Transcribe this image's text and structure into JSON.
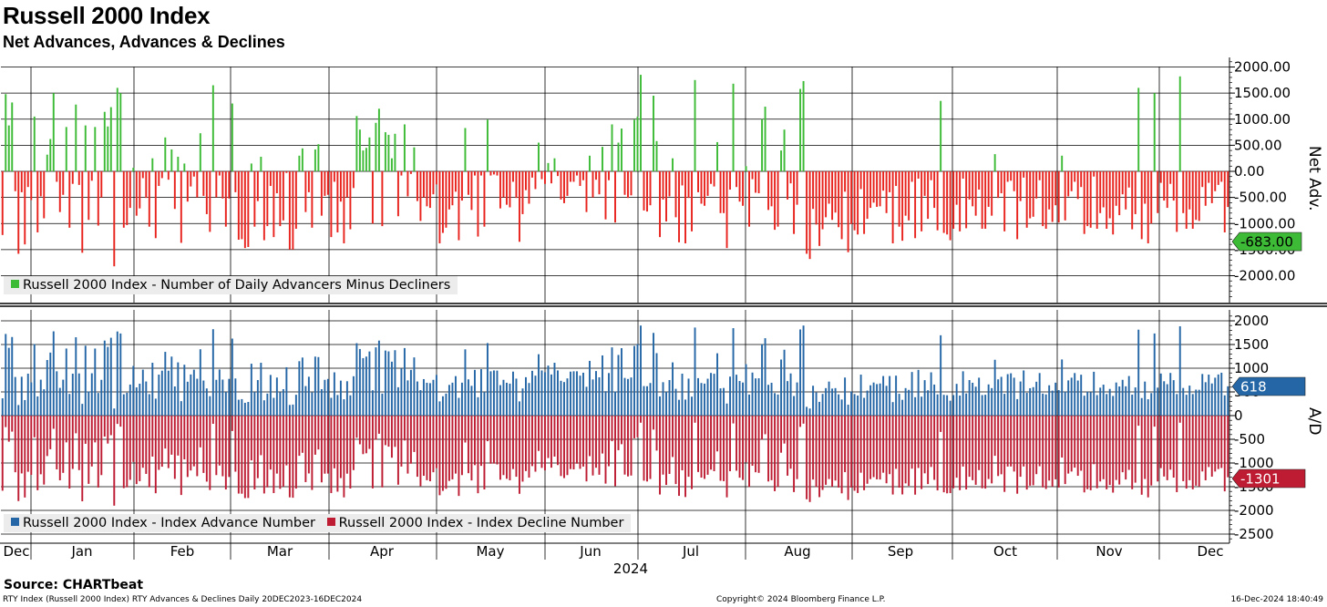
{
  "header": {
    "title": "Russell 2000 Index",
    "subtitle": "Net Advances, Advances & Declines"
  },
  "footer": {
    "source": "Source: CHARTbeat",
    "left": "RTY Index (Russell 2000 Index) RTY Advances & Declines  Daily 20DEC2023-16DEC2024",
    "center": "Copyright© 2024 Bloomberg Finance L.P.",
    "right": "16-Dec-2024 18:40:49"
  },
  "colors": {
    "net_up": "#3dbb36",
    "net_down": "#e8231e",
    "advance": "#2567a6",
    "decline": "#bd1c32",
    "grid": "#000000"
  },
  "chart_data": [
    {
      "type": "bar",
      "ylabel": "Net Adv.",
      "ylim": [
        -2500,
        2000
      ],
      "yticks": [
        "2000.00",
        "1500.00",
        "1000.00",
        "500.00",
        "0.00",
        "-500.00",
        "-1000.00",
        "-1500.00",
        "-2000.00"
      ],
      "last_value_label": "-683.00",
      "legend": {
        "position": "bottom-left"
      },
      "series": [
        {
          "name": "Russell 2000 Index - Number of Daily Advancers Minus Decliners",
          "values": [
            -1220,
            1480,
            880,
            1320,
            -380,
            -1580,
            -400,
            -1400,
            -300,
            -550,
            1050,
            -1170,
            -480,
            -900,
            320,
            620,
            1500,
            -200,
            -780,
            -450,
            850,
            -1080,
            -240,
            1280,
            -260,
            -1560,
            880,
            -930,
            -180,
            850,
            -1040,
            -500,
            1140,
            860,
            1230,
            -1820,
            1600,
            1500,
            -1080,
            -1030,
            -700,
            70,
            -850,
            -710,
            -130,
            -510,
            -1060,
            250,
            -1280,
            -280,
            -130,
            650,
            -160,
            420,
            -720,
            280,
            -1370,
            150,
            -580,
            -290,
            -100,
            -500,
            730,
            -470,
            -820,
            -1160,
            1650,
            -500,
            -80,
            -520,
            -1060,
            -520,
            1300,
            -400,
            -1310,
            -1300,
            -1470,
            -1450,
            150,
            -1060,
            -570,
            280,
            -1320,
            -1050,
            -280,
            -1260,
            -420,
            -1050,
            -940,
            -30,
            -1500,
            -1500,
            -1100,
            300,
            440,
            -780,
            -400,
            -1080,
            420,
            520,
            -850,
            -470,
            -450,
            -1260,
            -200,
            -1170,
            -580,
            -1380,
            -500,
            -1110,
            -320,
            1060,
            800,
            400,
            450,
            650,
            -1000,
            930,
            1200,
            -1050,
            750,
            700,
            250,
            720,
            -860,
            -80,
            900,
            -480,
            -50,
            460,
            -570,
            -950,
            -500,
            -670,
            -700,
            -440,
            -250,
            -1380,
            -1180,
            -1080,
            -730,
            -650,
            -390,
            -1320,
            -560,
            830,
            -450,
            -740,
            -80,
            -1250,
            -80,
            -1060,
            990,
            -80,
            -60,
            -80,
            -710,
            -500,
            -640,
            -690,
            -200,
            -510,
            -1350,
            -820,
            -360,
            -620,
            -120,
            -340,
            550,
            -150,
            -240,
            160,
            -230,
            250,
            -90,
            -540,
            -610,
            -470,
            -200,
            -200,
            -80,
            -280,
            -170,
            -780,
            300,
            -500,
            -160,
            -440,
            470,
            -920,
            -170,
            900,
            -980,
            550,
            820,
            -450,
            -510,
            -460,
            990,
            1050,
            1850,
            -750,
            -770,
            -650,
            1450,
            580,
            -1260,
            -540,
            -960,
            -480,
            250,
            -880,
            -1360,
            -270,
            -1380,
            -510,
            -1150,
            1750,
            -400,
            -620,
            -660,
            -470,
            -240,
            -290,
            560,
            -800,
            -800,
            -1470,
            -350,
            1680,
            -300,
            -580,
            -660,
            100,
            -1060,
            -150,
            -410,
            -420,
            1000,
            1240,
            -740,
            -670,
            -1120,
            -1060,
            400,
            800,
            -540,
            -230,
            -1200,
            -640,
            1580,
            1730,
            -1580,
            -1680,
            -720,
            -1020,
            -1430,
            -1110,
            -880,
            -620,
            -930,
            -790,
            -1070,
            -1300,
            -390,
            -1550,
            -1010,
            -1130,
            -1210,
            -340,
            -1200,
            -910,
            -700,
            -600,
            -680,
            -670,
            -370,
            -800,
            -400,
            -1380,
            -280,
            -1060,
            -1330,
            -850,
            -940,
            -200,
            -1280,
            -140,
            -1150,
            -470,
            -910,
            -170,
            -700,
            -1130,
            1350,
            -1180,
            -1210,
            -1320,
            -1100,
            -640,
            -1150,
            -140,
            -1090,
            -540,
            -670,
            -850,
            -350,
            -1100,
            -1100,
            -680,
            -850,
            330,
            -510,
            -420,
            -1150,
            -200,
            -180,
            -380,
            -1300,
            -570,
            -120,
            -1080,
            -900,
            -870,
            -520,
            -170,
            -1050,
            -1100,
            -730,
            -970,
            -650,
            -980,
            300,
            -940,
            -480,
            -380,
            -200,
            -530,
            -300,
            -1200,
            -1050,
            -1080,
            -100,
            -1100,
            -800,
            -690,
            -1100,
            -900,
            -1210,
            -660,
            -840,
            -440,
            -730,
            -310,
            -1110,
            -820,
            1600,
            -1300,
            -620,
            -1380,
            -1000,
            1500,
            -800,
            -220,
            -560,
            -700,
            -240,
            -560,
            -1160,
            1820,
            -800,
            -1100,
            -730,
            -1100,
            -930,
            -950,
            -300,
            -660,
            -220,
            -610,
            -380,
            -260,
            -200,
            -1170,
            -683
          ]
        }
      ]
    },
    {
      "type": "bar",
      "ylabel": "A/D",
      "ylim": [
        -2700,
        2100
      ],
      "yticks": [
        "2000",
        "1500",
        "1000",
        "500",
        "0",
        "-500",
        "-1000",
        "-1500",
        "-2000",
        "-2500"
      ],
      "last_advance_label": "618",
      "last_decline_label": "-1301",
      "legend": {
        "position": "bottom-left"
      },
      "series": [
        {
          "name": "Russell 2000 Index - Index Advance Number",
          "values": [],
          "note_unused": ""
        },
        {
          "name": "Russell 2000 Index - Index Decline Number",
          "values": []
        }
      ]
    }
  ],
  "x_axis": {
    "months": [
      "Dec",
      "Jan",
      "Feb",
      "Mar",
      "Apr",
      "May",
      "Jun",
      "Jul",
      "Aug",
      "Sep",
      "Oct",
      "Nov",
      "Dec"
    ],
    "year": "2024"
  }
}
